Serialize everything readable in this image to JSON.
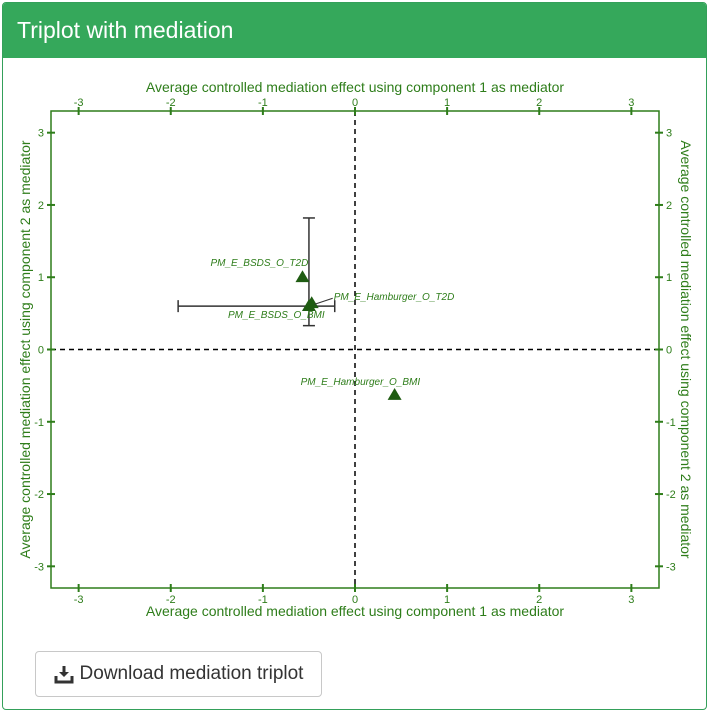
{
  "panel": {
    "title": "Triplot with mediation"
  },
  "download": {
    "label": "Download mediation triplot",
    "icon": "download-icon"
  },
  "colors": {
    "header_bg": "#35a85b",
    "axis": "#2e7d1a",
    "point": "#1f5c12",
    "errorbar": "#333333"
  },
  "chart_data": {
    "type": "scatter",
    "axes": {
      "bottom_label": "Average controlled mediation effect using component 1 as mediator",
      "top_label": "Average controlled mediation effect using component 1 as mediator",
      "left_label": "Average controlled mediation effect using component 2 as mediator",
      "right_label": "Average controlled mediation effect using component 2 as mediator",
      "xlim": [
        -3.3,
        3.3
      ],
      "ylim": [
        -3.3,
        3.3
      ],
      "x_ticks": [
        -3,
        -2,
        -1,
        0,
        1,
        2,
        3
      ],
      "y_ticks": [
        -3,
        -2,
        -1,
        0,
        1,
        2,
        3
      ],
      "x_tick_labels": [
        "-3",
        "-2",
        "-1",
        "0",
        "1",
        "2",
        "3"
      ],
      "y_tick_labels": [
        "-3",
        "-2",
        "-1",
        "0",
        "1",
        "2",
        "3"
      ],
      "reference_lines": [
        0,
        0
      ]
    },
    "points": [
      {
        "label": "PM_E_BSDS_O_T2D",
        "x": -0.57,
        "y": 1.0
      },
      {
        "label": "PM_E_Hamburger_O_T2D",
        "x": -0.47,
        "y": 0.64
      },
      {
        "label": "PM_E_BSDS_O_BMI",
        "x": -0.5,
        "y": 0.6
      },
      {
        "label": "PM_E_Hamburger_O_BMI",
        "x": 0.43,
        "y": -0.63
      }
    ],
    "error_bars": [
      {
        "x": -0.5,
        "y": 0.6,
        "x_low": -1.92,
        "x_high": -0.22,
        "y_low": 0.33,
        "y_high": 1.82
      }
    ]
  }
}
